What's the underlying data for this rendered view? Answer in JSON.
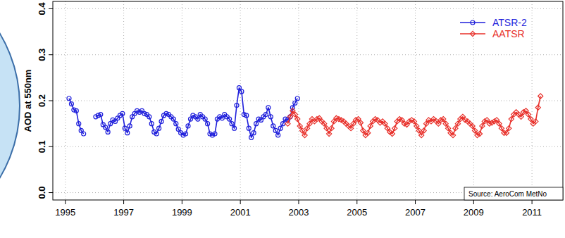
{
  "chart_data": {
    "type": "line",
    "y_label": "AOD at 550nm",
    "annotations": [
      "Source: AeroCom MetNo"
    ],
    "xlim": [
      1994.57,
      2012.06
    ],
    "xticks": [
      1995,
      1997,
      1999,
      2001,
      2003,
      2005,
      2007,
      2009,
      2011
    ],
    "ylim": [
      -0.016,
      0.416
    ],
    "yticks": [
      {
        "value": 0,
        "label": "0.0"
      },
      0.1,
      0.2,
      0.3,
      0.4
    ],
    "grid": true,
    "legend": "top-right",
    "series": [
      {
        "name": "ATSR-2",
        "color": "#1f1fdb",
        "marker": "circle",
        "x": [
          1995.125,
          1995.208,
          1995.292,
          1995.375,
          1995.458,
          1995.542,
          1995.625,
          1995.708,
          1995.792,
          1995.875,
          1995.958,
          1996.042,
          1996.125,
          1996.208,
          1996.292,
          1996.375,
          1996.458,
          1996.542,
          1996.625,
          1996.708,
          1996.792,
          1996.875,
          1996.958,
          1997.042,
          1997.125,
          1997.208,
          1997.292,
          1997.375,
          1997.458,
          1997.542,
          1997.625,
          1997.708,
          1997.792,
          1997.875,
          1997.958,
          1998.042,
          1998.125,
          1998.208,
          1998.292,
          1998.375,
          1998.458,
          1998.542,
          1998.625,
          1998.708,
          1998.792,
          1998.875,
          1998.958,
          1999.042,
          1999.125,
          1999.208,
          1999.292,
          1999.375,
          1999.458,
          1999.542,
          1999.625,
          1999.708,
          1999.792,
          1999.875,
          1999.958,
          2000.042,
          2000.125,
          2000.208,
          2000.292,
          2000.375,
          2000.458,
          2000.542,
          2000.625,
          2000.708,
          2000.792,
          2000.875,
          2000.958,
          2001.042,
          2001.125,
          2001.208,
          2001.292,
          2001.375,
          2001.458,
          2001.542,
          2001.625,
          2001.708,
          2001.792,
          2001.875,
          2001.958,
          2002.042,
          2002.125,
          2002.208,
          2002.292,
          2002.375,
          2002.458,
          2002.542,
          2002.625,
          2002.708,
          2002.792,
          2002.875,
          2002.958
        ],
        "values": [
          0.205,
          0.193,
          0.18,
          0.178,
          0.15,
          0.135,
          0.128,
          null,
          null,
          null,
          null,
          0.165,
          0.168,
          0.17,
          0.148,
          0.142,
          0.132,
          0.15,
          0.158,
          0.155,
          0.162,
          0.168,
          0.172,
          0.14,
          0.13,
          0.145,
          0.165,
          0.172,
          0.178,
          0.175,
          0.178,
          0.172,
          0.17,
          0.165,
          0.15,
          0.132,
          0.128,
          0.14,
          0.155,
          0.168,
          0.172,
          0.17,
          0.165,
          0.16,
          0.15,
          0.138,
          0.13,
          0.125,
          0.128,
          0.145,
          0.16,
          0.168,
          0.165,
          0.16,
          0.17,
          0.165,
          0.16,
          0.15,
          0.128,
          0.125,
          0.128,
          0.16,
          0.165,
          0.162,
          0.17,
          0.165,
          0.16,
          0.15,
          0.14,
          0.19,
          0.228,
          0.22,
          0.17,
          0.168,
          0.14,
          0.12,
          0.13,
          0.15,
          0.16,
          0.158,
          0.165,
          0.17,
          0.185,
          0.165,
          0.145,
          0.135,
          0.125,
          0.14,
          0.15,
          0.16,
          0.158,
          0.165,
          0.185,
          0.195,
          0.205
        ]
      },
      {
        "name": "AATSR",
        "color": "#e8302a",
        "marker": "diamond",
        "x": [
          2002.625,
          2002.708,
          2002.792,
          2002.875,
          2002.958,
          2003.042,
          2003.125,
          2003.208,
          2003.292,
          2003.375,
          2003.458,
          2003.542,
          2003.625,
          2003.708,
          2003.792,
          2003.875,
          2003.958,
          2004.042,
          2004.125,
          2004.208,
          2004.292,
          2004.375,
          2004.458,
          2004.542,
          2004.625,
          2004.708,
          2004.792,
          2004.875,
          2004.958,
          2005.042,
          2005.125,
          2005.208,
          2005.292,
          2005.375,
          2005.458,
          2005.542,
          2005.625,
          2005.708,
          2005.792,
          2005.875,
          2005.958,
          2006.042,
          2006.125,
          2006.208,
          2006.292,
          2006.375,
          2006.458,
          2006.542,
          2006.625,
          2006.708,
          2006.792,
          2006.875,
          2006.958,
          2007.042,
          2007.125,
          2007.208,
          2007.292,
          2007.375,
          2007.458,
          2007.542,
          2007.625,
          2007.708,
          2007.792,
          2007.875,
          2007.958,
          2008.042,
          2008.125,
          2008.208,
          2008.292,
          2008.375,
          2008.458,
          2008.542,
          2008.625,
          2008.708,
          2008.792,
          2008.875,
          2008.958,
          2009.042,
          2009.125,
          2009.208,
          2009.292,
          2009.375,
          2009.458,
          2009.542,
          2009.625,
          2009.708,
          2009.792,
          2009.875,
          2009.958,
          2010.042,
          2010.125,
          2010.208,
          2010.292,
          2010.375,
          2010.458,
          2010.542,
          2010.625,
          2010.708,
          2010.792,
          2010.875,
          2010.958,
          2011.042,
          2011.125,
          2011.208,
          2011.292
        ],
        "values": [
          0.15,
          0.165,
          0.178,
          0.17,
          0.16,
          0.145,
          0.135,
          0.125,
          0.14,
          0.15,
          0.16,
          0.155,
          0.16,
          0.162,
          0.155,
          0.15,
          0.14,
          0.128,
          0.14,
          0.155,
          0.162,
          0.16,
          0.158,
          0.155,
          0.15,
          0.145,
          0.14,
          0.15,
          0.158,
          0.16,
          0.152,
          0.135,
          0.125,
          0.13,
          0.145,
          0.155,
          0.16,
          0.158,
          0.152,
          0.155,
          0.15,
          0.14,
          0.132,
          0.128,
          0.14,
          0.155,
          0.16,
          0.158,
          0.15,
          0.148,
          0.155,
          0.158,
          0.155,
          0.145,
          0.135,
          0.125,
          0.135,
          0.15,
          0.158,
          0.155,
          0.16,
          0.156,
          0.15,
          0.158,
          0.16,
          0.15,
          0.14,
          0.13,
          0.125,
          0.14,
          0.15,
          0.16,
          0.165,
          0.158,
          0.155,
          0.15,
          0.145,
          0.135,
          0.125,
          0.128,
          0.145,
          0.155,
          0.158,
          0.15,
          0.152,
          0.155,
          0.158,
          0.15,
          0.14,
          0.13,
          0.13,
          0.14,
          0.16,
          0.17,
          0.175,
          0.17,
          0.165,
          0.175,
          0.178,
          0.17,
          0.16,
          0.15,
          0.155,
          0.185,
          0.21
        ]
      }
    ]
  }
}
